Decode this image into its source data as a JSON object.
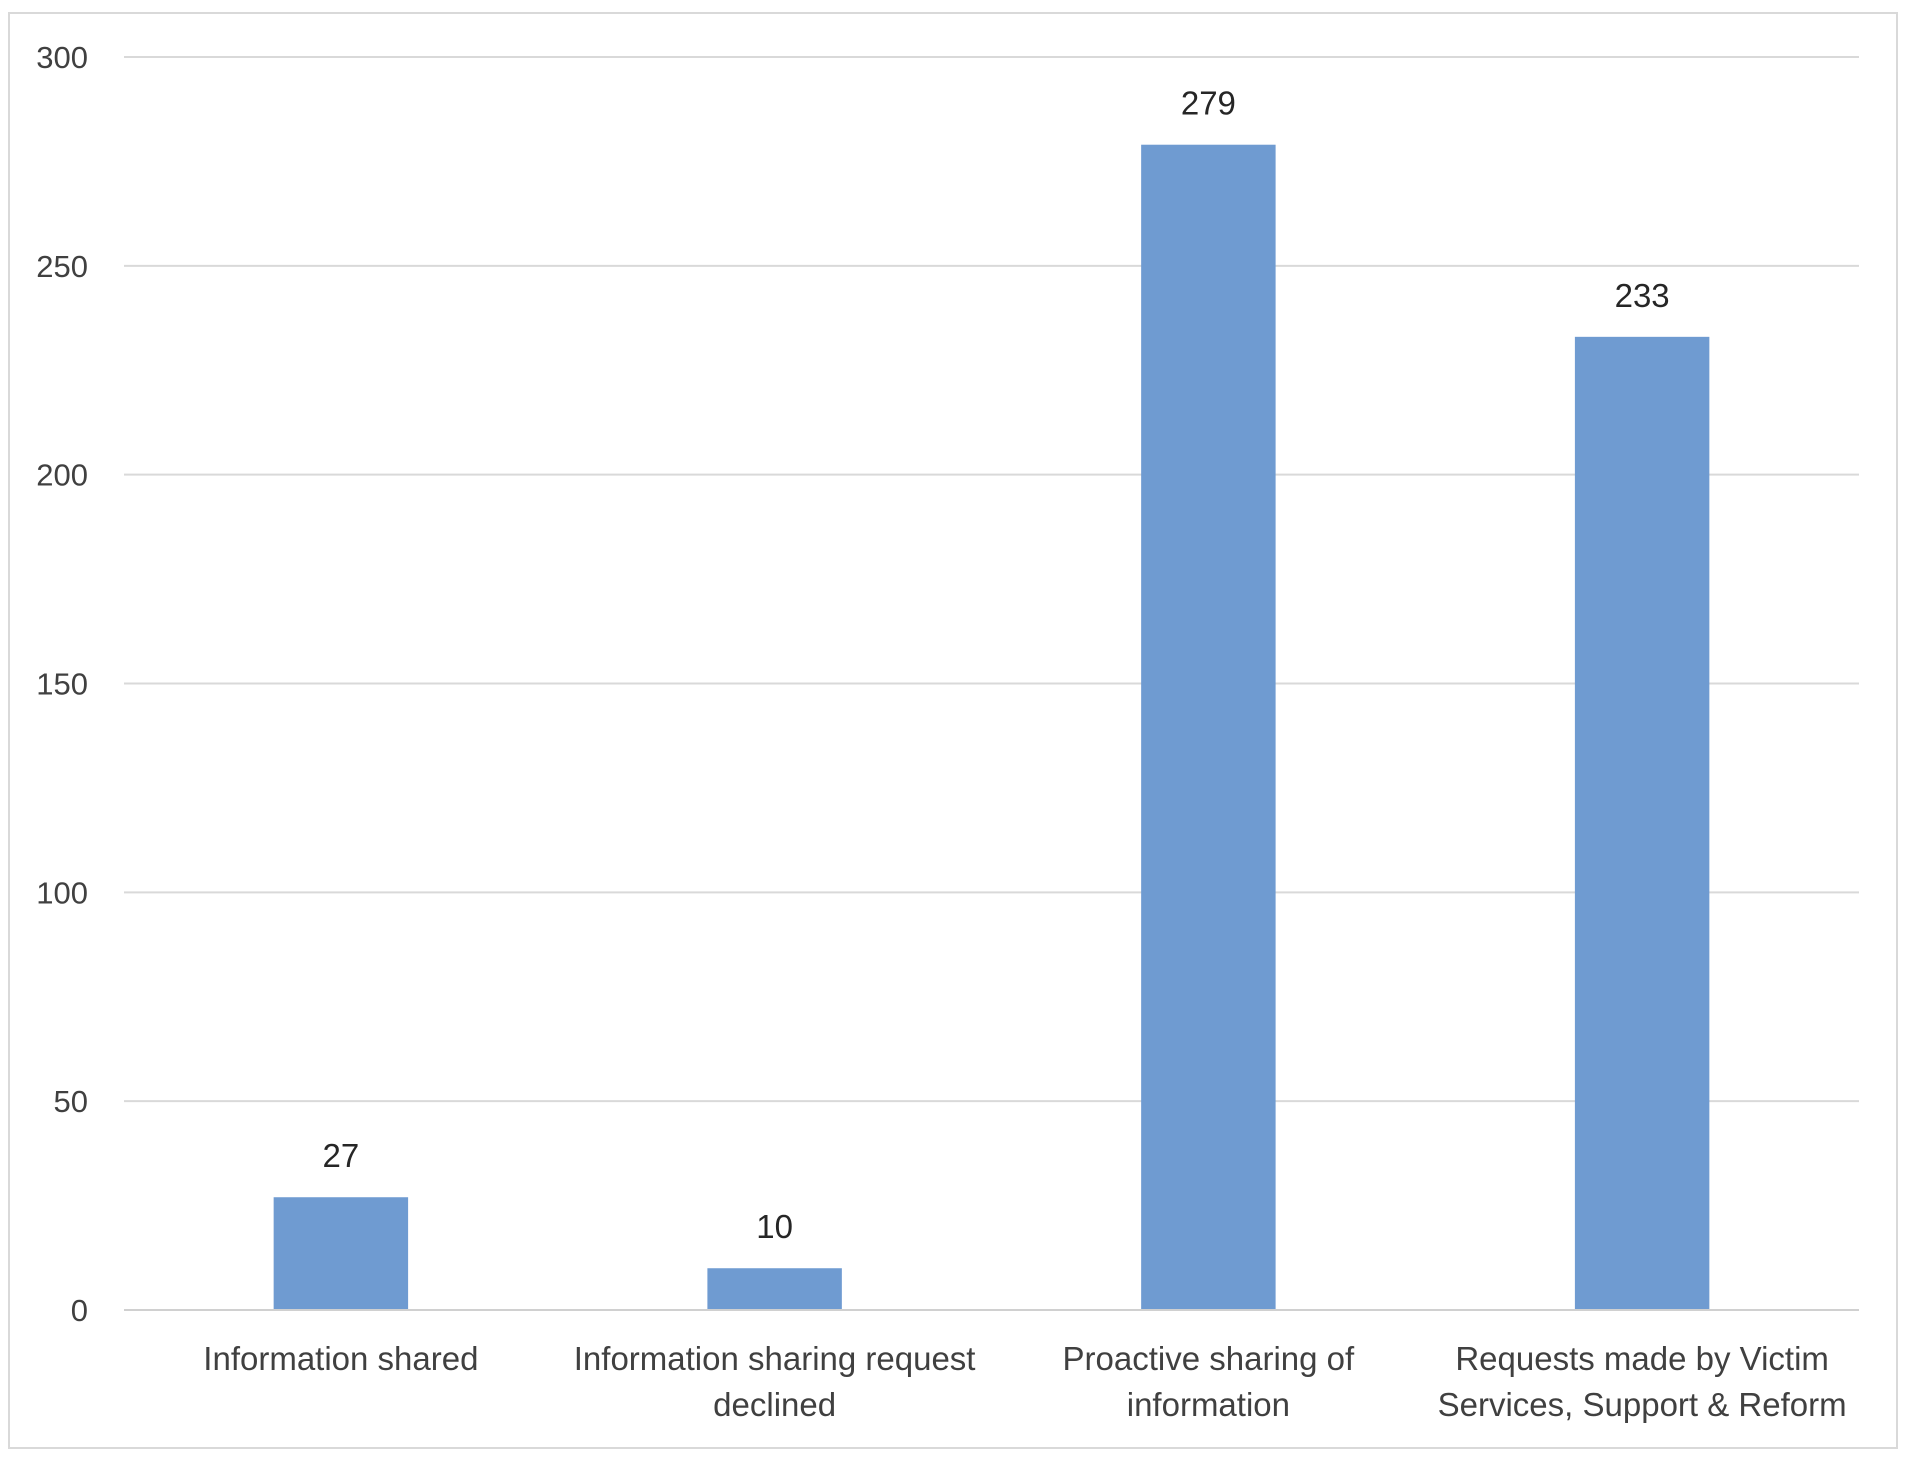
{
  "chart_data": {
    "type": "bar",
    "title": "",
    "xlabel": "",
    "ylabel": "",
    "categories": [
      [
        "Information shared"
      ],
      [
        "Information sharing request",
        "declined"
      ],
      [
        "Proactive sharing of",
        "information"
      ],
      [
        "Requests made by Victim",
        "Services, Support & Reform"
      ]
    ],
    "values": [
      27,
      10,
      279,
      233
    ],
    "data_labels": [
      "27",
      "10",
      "279",
      "233"
    ],
    "ylim": [
      0,
      300
    ],
    "yticks": [
      0,
      50,
      100,
      150,
      200,
      250,
      300
    ],
    "grid": true,
    "legend": "none",
    "bar_color": "#6f9bd1",
    "grid_color": "#d9d9d9",
    "axis_color": "#d0d0d0"
  }
}
